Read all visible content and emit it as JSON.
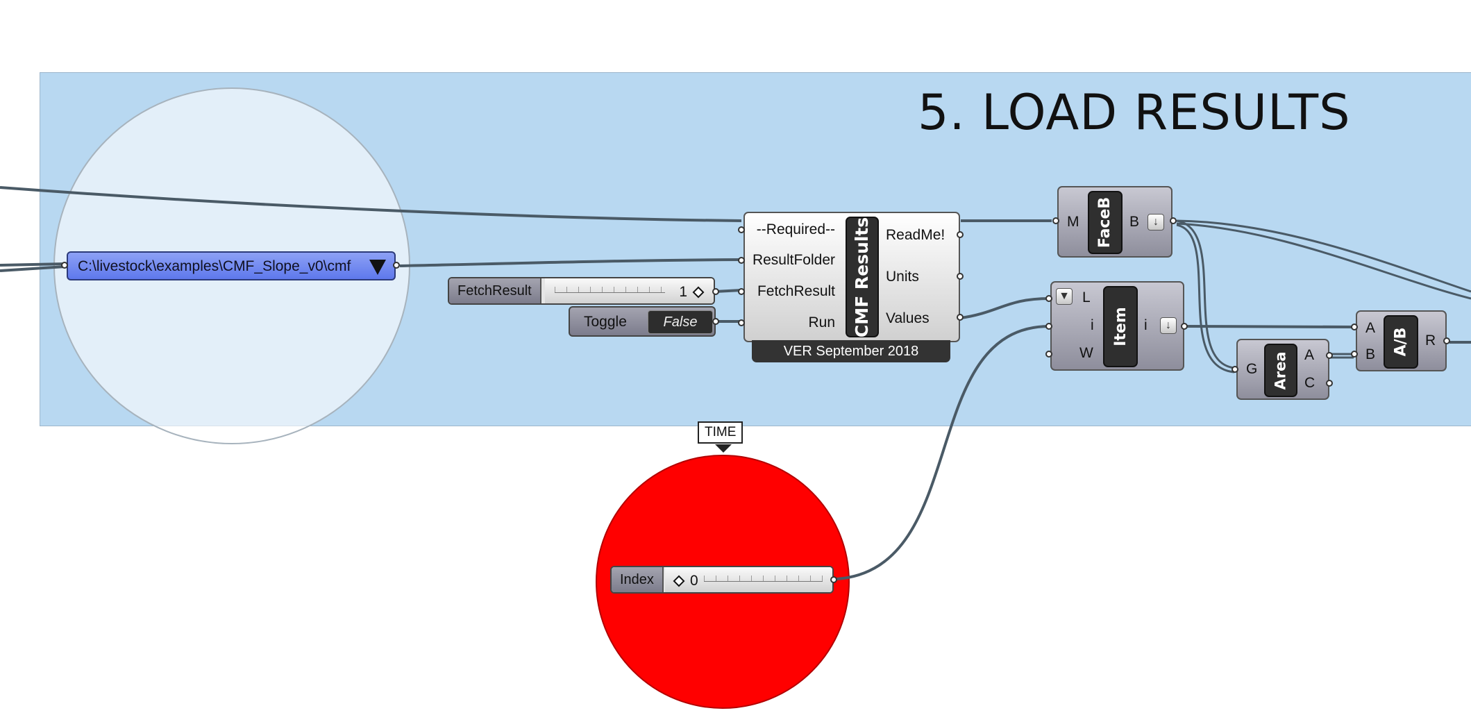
{
  "group": {
    "title": "5. LOAD RESULTS"
  },
  "panel": {
    "path": "C:\\livestock\\examples\\CMF_Slope_v0\\cmf"
  },
  "sliders": {
    "fetch_result": {
      "label": "FetchResult",
      "value": "1"
    },
    "index": {
      "label": "Index",
      "value": "0"
    }
  },
  "toggle": {
    "label": "Toggle",
    "state": "False"
  },
  "cmf_results": {
    "nickname": "CMF Results",
    "inputs": [
      "--Required--",
      "ResultFolder",
      "FetchResult",
      "Run"
    ],
    "outputs": [
      "ReadMe!",
      "Units",
      "Values"
    ],
    "version": "VER September 2018"
  },
  "faceb": {
    "nickname": "FaceB",
    "input": "M",
    "output": "B"
  },
  "item": {
    "nickname": "Item",
    "inputs": [
      "L",
      "i",
      "W"
    ],
    "output": "i"
  },
  "area": {
    "nickname": "Area",
    "input": "G",
    "outputs": [
      "A",
      "C"
    ]
  },
  "divide": {
    "nickname": "A/B",
    "inputs": [
      "A",
      "B"
    ],
    "output": "R"
  },
  "scribble": {
    "text": "TIME"
  },
  "icons": {
    "flatten": "down-arrow-icon",
    "list": "funnel-icon",
    "dropdown": "triangle-down-icon",
    "number": "diamond-icon"
  },
  "colors": {
    "group": "#b8d8f1",
    "panel": "#6f86f0",
    "halo_red": "#ff0000",
    "wire": "#4a5a66"
  }
}
